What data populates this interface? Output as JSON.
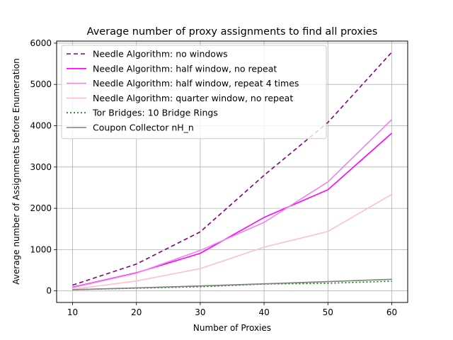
{
  "chart_data": {
    "type": "line",
    "title": "Average number of proxy assignments to find all proxies",
    "xlabel": "Number of Proxies",
    "ylabel": "Average number of Assignments before Enumeration",
    "x": [
      10,
      20,
      30,
      40,
      50,
      60
    ],
    "xlim": [
      7.5,
      62.5
    ],
    "ylim": [
      -280,
      6050
    ],
    "xticks": [
      10,
      20,
      30,
      40,
      50,
      60
    ],
    "yticks": [
      0,
      1000,
      2000,
      3000,
      4000,
      5000,
      6000
    ],
    "grid": true,
    "legend_position": "top-left",
    "series": [
      {
        "name": "Needle Algorithm: no windows",
        "color": "#800080",
        "dash": "dashed",
        "values": [
          140,
          650,
          1430,
          2800,
          4080,
          5780
        ]
      },
      {
        "name": "Needle Algorithm: half window, no repeat",
        "color": "#ff00ff",
        "dash": "solid",
        "values": [
          90,
          440,
          910,
          1780,
          2450,
          3820
        ]
      },
      {
        "name": "Needle Algorithm: half window, repeat 4 times",
        "color": "#ee82ee",
        "dash": "solid",
        "values": [
          80,
          430,
          980,
          1660,
          2640,
          4150
        ]
      },
      {
        "name": "Needle Algorithm: quarter window, no repeat",
        "color": "#ffc0cb",
        "dash": "solid",
        "values": [
          40,
          240,
          540,
          1060,
          1440,
          2340
        ]
      },
      {
        "name": "Tor Bridges: 10 Bridge Rings",
        "color": "#008000",
        "dash": "dotted",
        "values": [
          30,
          65,
          100,
          165,
          185,
          235
        ]
      },
      {
        "name": "Coupon Collector nH_n",
        "color": "#808080",
        "dash": "solid",
        "values": [
          29,
          72,
          120,
          171,
          225,
          281
        ]
      }
    ]
  }
}
